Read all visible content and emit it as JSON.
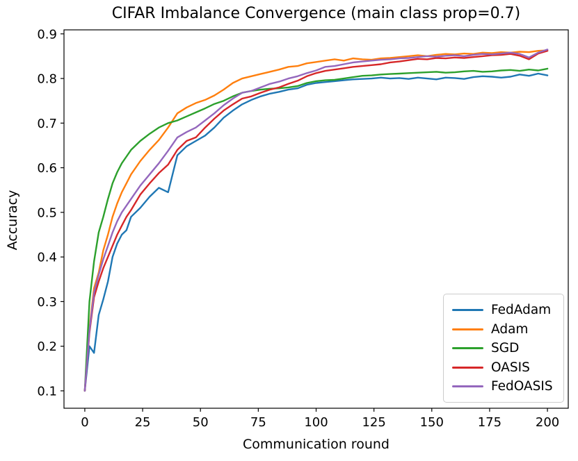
{
  "figure": {
    "title": "CIFAR Imbalance Convergence (main class prop=0.7)",
    "xlabel": "Communication round",
    "ylabel": "Accuracy"
  },
  "chart_data": {
    "type": "line",
    "title": "CIFAR Imbalance Convergence (main class prop=0.7)",
    "xlabel": "Communication round",
    "ylabel": "Accuracy",
    "xlim": [
      -9,
      209
    ],
    "ylim": [
      0.061,
      0.909
    ],
    "xticks": [
      0,
      25,
      50,
      75,
      100,
      125,
      150,
      175,
      200
    ],
    "yticks": [
      0.1,
      0.2,
      0.3,
      0.4,
      0.5,
      0.6,
      0.7,
      0.8,
      0.9
    ],
    "grid": false,
    "legend_position": "lower right",
    "x": [
      0,
      2,
      4,
      6,
      8,
      10,
      12,
      14,
      16,
      18,
      20,
      24,
      28,
      32,
      36,
      40,
      44,
      48,
      52,
      56,
      60,
      64,
      68,
      72,
      76,
      80,
      84,
      88,
      92,
      96,
      100,
      104,
      108,
      112,
      116,
      120,
      124,
      128,
      132,
      136,
      140,
      144,
      148,
      152,
      156,
      160,
      164,
      168,
      172,
      176,
      180,
      184,
      188,
      192,
      196,
      200
    ],
    "series": [
      {
        "name": "FedAdam",
        "color": "#1f77b4",
        "values": [
          0.1,
          0.2,
          0.185,
          0.27,
          0.305,
          0.345,
          0.4,
          0.43,
          0.45,
          0.46,
          0.49,
          0.51,
          0.535,
          0.555,
          0.545,
          0.628,
          0.648,
          0.66,
          0.672,
          0.69,
          0.712,
          0.728,
          0.742,
          0.752,
          0.76,
          0.766,
          0.77,
          0.775,
          0.778,
          0.786,
          0.79,
          0.792,
          0.794,
          0.796,
          0.798,
          0.799,
          0.8,
          0.802,
          0.8,
          0.801,
          0.799,
          0.802,
          0.8,
          0.798,
          0.802,
          0.801,
          0.799,
          0.803,
          0.805,
          0.804,
          0.802,
          0.804,
          0.809,
          0.806,
          0.811,
          0.807
        ]
      },
      {
        "name": "Adam",
        "color": "#ff7f0e",
        "values": [
          0.1,
          0.24,
          0.33,
          0.365,
          0.415,
          0.45,
          0.49,
          0.52,
          0.545,
          0.565,
          0.585,
          0.615,
          0.64,
          0.662,
          0.69,
          0.722,
          0.735,
          0.745,
          0.752,
          0.762,
          0.775,
          0.79,
          0.8,
          0.805,
          0.81,
          0.815,
          0.82,
          0.826,
          0.828,
          0.834,
          0.837,
          0.84,
          0.843,
          0.84,
          0.845,
          0.843,
          0.842,
          0.845,
          0.846,
          0.848,
          0.85,
          0.852,
          0.85,
          0.853,
          0.855,
          0.854,
          0.856,
          0.855,
          0.858,
          0.857,
          0.859,
          0.858,
          0.86,
          0.859,
          0.862,
          0.863
        ]
      },
      {
        "name": "SGD",
        "color": "#2ca02c",
        "values": [
          0.1,
          0.3,
          0.39,
          0.455,
          0.49,
          0.53,
          0.565,
          0.59,
          0.61,
          0.625,
          0.64,
          0.66,
          0.676,
          0.69,
          0.7,
          0.706,
          0.715,
          0.724,
          0.733,
          0.743,
          0.75,
          0.76,
          0.768,
          0.772,
          0.775,
          0.777,
          0.778,
          0.78,
          0.783,
          0.79,
          0.794,
          0.796,
          0.797,
          0.8,
          0.803,
          0.806,
          0.807,
          0.809,
          0.81,
          0.811,
          0.812,
          0.813,
          0.814,
          0.815,
          0.813,
          0.814,
          0.816,
          0.817,
          0.815,
          0.816,
          0.818,
          0.819,
          0.817,
          0.82,
          0.818,
          0.822
        ]
      },
      {
        "name": "OASIS",
        "color": "#d62728",
        "values": [
          0.1,
          0.23,
          0.31,
          0.345,
          0.375,
          0.4,
          0.425,
          0.45,
          0.47,
          0.49,
          0.505,
          0.54,
          0.565,
          0.588,
          0.607,
          0.64,
          0.66,
          0.668,
          0.69,
          0.71,
          0.728,
          0.742,
          0.755,
          0.76,
          0.768,
          0.775,
          0.78,
          0.788,
          0.795,
          0.805,
          0.812,
          0.817,
          0.82,
          0.823,
          0.826,
          0.828,
          0.83,
          0.832,
          0.836,
          0.838,
          0.841,
          0.844,
          0.843,
          0.846,
          0.845,
          0.847,
          0.846,
          0.848,
          0.85,
          0.852,
          0.853,
          0.855,
          0.851,
          0.843,
          0.856,
          0.862
        ]
      },
      {
        "name": "FedOASIS",
        "color": "#9467bd",
        "values": [
          0.1,
          0.235,
          0.32,
          0.36,
          0.395,
          0.425,
          0.455,
          0.48,
          0.5,
          0.515,
          0.53,
          0.56,
          0.585,
          0.61,
          0.638,
          0.668,
          0.68,
          0.69,
          0.706,
          0.722,
          0.74,
          0.755,
          0.768,
          0.772,
          0.78,
          0.788,
          0.793,
          0.8,
          0.805,
          0.812,
          0.818,
          0.826,
          0.828,
          0.832,
          0.836,
          0.838,
          0.84,
          0.842,
          0.843,
          0.845,
          0.846,
          0.848,
          0.85,
          0.849,
          0.851,
          0.852,
          0.85,
          0.853,
          0.855,
          0.854,
          0.856,
          0.858,
          0.855,
          0.847,
          0.858,
          0.865
        ]
      }
    ]
  }
}
